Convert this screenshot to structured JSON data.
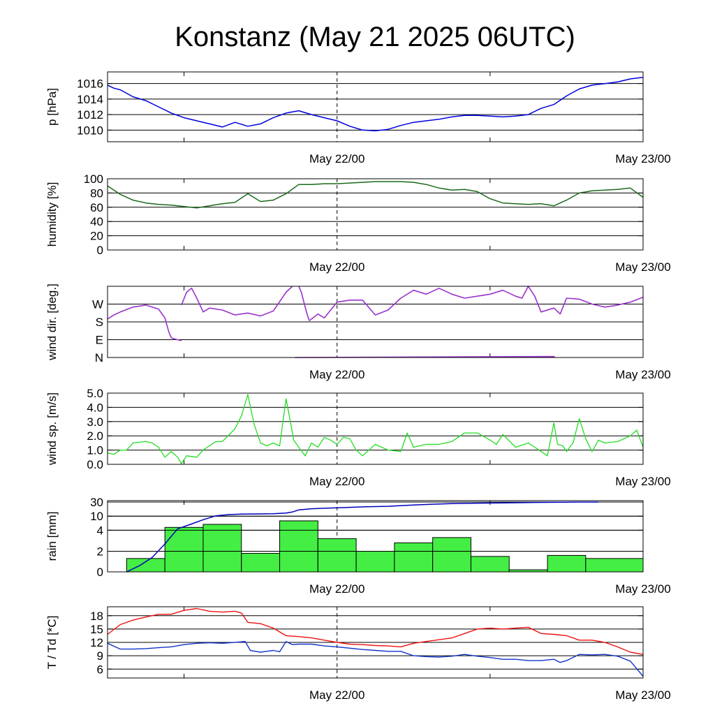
{
  "title": "Konstanz (May 21 2025 06UTC)",
  "x_tick_labels": [
    "May 22/00",
    "May 23/00"
  ],
  "colors": {
    "pressure": "#0000dd",
    "humidity": "#1a6a1a",
    "wind_dir": "#9933cc",
    "wind_speed": "#22dd22",
    "rain_bars": "#44ee44",
    "rain_cumulative": "#0000bb",
    "temperature": "#ee1111",
    "dewpoint": "#1133cc"
  },
  "chart_data": [
    {
      "type": "line",
      "name": "pressure",
      "ylabel": "p [hPa]",
      "ylim": [
        1008.5,
        1017.5
      ],
      "yticks": [
        1010,
        1012,
        1014,
        1016
      ],
      "ytick_labels": [
        "1010",
        "1012",
        "1014",
        "1016"
      ],
      "xlim": [
        0,
        42
      ],
      "x_unit": "hours since May 21 06UTC",
      "x": [
        0,
        0.5,
        1,
        2,
        3,
        4,
        5,
        6,
        7,
        8,
        9,
        10,
        11,
        12,
        13,
        14,
        15,
        16,
        17,
        18,
        19,
        20,
        21,
        22,
        23,
        24,
        25,
        26,
        27,
        28,
        29,
        30,
        31,
        32,
        33,
        34,
        35,
        36,
        37,
        38,
        39,
        40,
        41,
        42
      ],
      "y": [
        1015.8,
        1015.4,
        1015.2,
        1014.3,
        1013.8,
        1013.0,
        1012.2,
        1011.6,
        1011.2,
        1010.8,
        1010.4,
        1011.0,
        1010.5,
        1010.8,
        1011.6,
        1012.2,
        1012.5,
        1012.0,
        1011.6,
        1011.2,
        1010.5,
        1010.0,
        1009.9,
        1010.1,
        1010.6,
        1011.0,
        1011.2,
        1011.4,
        1011.7,
        1011.9,
        1011.9,
        1011.8,
        1011.7,
        1011.8,
        1012.0,
        1012.8,
        1013.3,
        1014.4,
        1015.3,
        1015.8,
        1016.0,
        1016.2,
        1016.6,
        1016.8
      ]
    },
    {
      "type": "line",
      "name": "humidity",
      "ylabel": "humidity [%]",
      "ylim": [
        0,
        100
      ],
      "yticks": [
        0,
        20,
        40,
        60,
        80,
        100
      ],
      "ytick_labels": [
        "0",
        "20",
        "40",
        "60",
        "80",
        "100"
      ],
      "xlim": [
        0,
        42
      ],
      "x": [
        0,
        1,
        2,
        3,
        4,
        5,
        6,
        7,
        8,
        9,
        10,
        11,
        12,
        13,
        14,
        15,
        16,
        17,
        18,
        19,
        20,
        21,
        22,
        23,
        24,
        25,
        26,
        27,
        28,
        29,
        30,
        31,
        32,
        33,
        34,
        35,
        36,
        37,
        38,
        39,
        40,
        41,
        42
      ],
      "y": [
        90,
        78,
        70,
        66,
        64,
        63,
        61,
        59,
        62,
        65,
        67,
        79,
        68,
        70,
        79,
        92,
        92,
        93,
        93,
        94,
        95,
        96,
        96,
        96,
        95,
        92,
        87,
        84,
        85,
        82,
        72,
        66,
        65,
        64,
        65,
        62,
        70,
        80,
        83,
        84,
        85,
        87,
        74
      ]
    },
    {
      "type": "scatter",
      "name": "wind direction",
      "ylabel": "wind dir. [deg.]",
      "ylim": [
        0,
        360
      ],
      "yticks": [
        0,
        90,
        180,
        270
      ],
      "ytick_labels": [
        "N",
        "E",
        "S",
        "W"
      ],
      "xlim": [
        0,
        42
      ],
      "segments": [
        {
          "x": [
            0,
            0.5,
            1,
            2,
            3,
            4,
            4.5,
            4.8,
            5,
            5.2,
            5.5,
            5.8
          ],
          "y": [
            195,
            215,
            230,
            255,
            265,
            245,
            200,
            130,
            100,
            95,
            90,
            85
          ]
        },
        {
          "x": [
            5.8,
            6.2,
            6.6,
            7,
            7.5,
            8,
            9,
            10,
            11,
            12,
            13,
            14,
            14.5
          ],
          "y": [
            265,
            330,
            350,
            300,
            230,
            250,
            240,
            215,
            225,
            210,
            235,
            330,
            360
          ]
        },
        {
          "x": [
            15,
            15.2,
            15.4,
            15.6,
            15.8
          ],
          "y": [
            360,
            330,
            280,
            230,
            190
          ]
        },
        {
          "x": [
            15.8,
            16.5,
            17,
            18,
            19,
            20,
            21,
            22,
            23,
            24,
            25,
            26,
            27,
            28,
            29,
            30,
            31,
            32,
            32.5,
            33,
            33.5,
            34,
            35,
            35.5,
            36,
            37,
            38,
            39,
            40,
            41,
            42
          ],
          "y": [
            185,
            220,
            200,
            280,
            290,
            290,
            215,
            240,
            300,
            340,
            320,
            350,
            320,
            300,
            310,
            320,
            340,
            310,
            300,
            360,
            310,
            230,
            250,
            220,
            300,
            295,
            270,
            255,
            265,
            280,
            305
          ]
        },
        {
          "x": [
            14.7,
            35.0,
            35.1
          ],
          "y": [
            0,
            5,
            0
          ]
        }
      ]
    },
    {
      "type": "line",
      "name": "wind speed",
      "ylabel": "wind sp. [m/s]",
      "ylim": [
        0,
        5
      ],
      "yticks": [
        0,
        1,
        2,
        3,
        4,
        5
      ],
      "ytick_labels": [
        "0.0",
        "1.0",
        "2.0",
        "3.0",
        "4.0",
        "5.0"
      ],
      "xlim": [
        0,
        42
      ],
      "x": [
        0,
        0.5,
        1,
        1.5,
        2,
        3,
        3.5,
        4,
        4.5,
        5,
        5.5,
        5.8,
        6.2,
        7,
        7.5,
        8,
        8.5,
        9,
        10,
        10.5,
        11,
        11.5,
        12,
        12.5,
        13,
        13.5,
        14,
        14.3,
        14.6,
        15,
        15.5,
        16,
        16.5,
        17,
        17.5,
        18,
        18.5,
        19,
        19.5,
        20,
        21,
        22,
        23,
        23.5,
        24,
        25,
        26,
        27,
        28,
        29,
        30,
        30.5,
        31,
        32,
        33,
        34,
        34.5,
        35,
        35.3,
        35.7,
        36,
        36.5,
        37,
        37.5,
        38,
        38.5,
        39,
        40,
        41,
        41.5,
        42
      ],
      "y": [
        0.8,
        0.7,
        1.0,
        1.0,
        1.5,
        1.6,
        1.5,
        1.2,
        0.5,
        0.9,
        0.5,
        0.05,
        0.6,
        0.5,
        1.0,
        1.3,
        1.6,
        1.6,
        2.5,
        3.4,
        4.9,
        2.8,
        1.5,
        1.3,
        1.5,
        1.3,
        4.6,
        3.2,
        1.7,
        1.2,
        0.6,
        1.5,
        1.2,
        1.9,
        1.7,
        1.4,
        1.9,
        1.8,
        1.0,
        0.6,
        1.4,
        1.0,
        0.9,
        2.2,
        1.2,
        1.4,
        1.4,
        1.6,
        2.2,
        2.2,
        1.7,
        1.4,
        2.1,
        1.2,
        1.5,
        0.9,
        0.6,
        2.9,
        1.4,
        1.3,
        0.9,
        1.5,
        3.2,
        1.8,
        0.9,
        1.7,
        1.5,
        1.6,
        2.0,
        2.4,
        1.2
      ]
    },
    {
      "type": "bar",
      "name": "rain",
      "ylabel": "rain [mm]",
      "y_scale": "nonlinear",
      "yticks": [
        0,
        2,
        4,
        10,
        30
      ],
      "ytick_labels": [
        "0",
        "2",
        "4",
        "10",
        "30"
      ],
      "xlim": [
        0,
        42
      ],
      "bars": [
        {
          "x0": 1.5,
          "x1": 4.5,
          "value": 1.3
        },
        {
          "x0": 4.5,
          "x1": 7.5,
          "value": 5.2
        },
        {
          "x0": 7.5,
          "x1": 10.5,
          "value": 6.5
        },
        {
          "x0": 10.5,
          "x1": 13.5,
          "value": 1.8
        },
        {
          "x0": 13.5,
          "x1": 16.5,
          "value": 8.0
        },
        {
          "x0": 16.5,
          "x1": 19.5,
          "value": 3.2
        },
        {
          "x0": 19.5,
          "x1": 22.5,
          "value": 2.0
        },
        {
          "x0": 22.5,
          "x1": 25.5,
          "value": 2.8
        },
        {
          "x0": 25.5,
          "x1": 28.5,
          "value": 3.3
        },
        {
          "x0": 28.5,
          "x1": 31.5,
          "value": 1.5
        },
        {
          "x0": 31.5,
          "x1": 34.5,
          "value": 0.2
        },
        {
          "x0": 34.5,
          "x1": 37.5,
          "value": 1.6
        },
        {
          "x0": 37.5,
          "x1": 42,
          "value": 1.3
        }
      ],
      "cumulative": {
        "x": [
          1.5,
          2.5,
          3.5,
          4.5,
          5.5,
          6.5,
          7.5,
          8.5,
          9.5,
          10.5,
          12,
          13,
          14,
          14.5,
          15,
          16,
          17,
          18,
          19,
          20,
          22,
          24,
          25.5,
          27,
          29,
          31,
          33,
          35,
          37,
          38.5
        ],
        "y": [
          0,
          0.6,
          1.4,
          2.7,
          4.6,
          6.5,
          8.5,
          10.5,
          12.2,
          13.0,
          13.2,
          13.5,
          14.5,
          16,
          18.8,
          20.5,
          21.2,
          21.8,
          22.5,
          23.2,
          24.0,
          25.8,
          27.0,
          27.8,
          28.5,
          28.9,
          29.3,
          29.6,
          30.0,
          30.1
        ]
      }
    },
    {
      "type": "line",
      "name": "temperature / dewpoint",
      "ylabel": "T / Td [*C]",
      "ylim": [
        4,
        20
      ],
      "yticks": [
        6,
        9,
        12,
        15,
        18
      ],
      "ytick_labels": [
        "6",
        "9",
        "12",
        "15",
        "18"
      ],
      "xlim": [
        0,
        42
      ],
      "series": [
        {
          "x": [
            0,
            1,
            2,
            3,
            4,
            5,
            6,
            7,
            8,
            9,
            10,
            10.5,
            11,
            12,
            13,
            14,
            15,
            16,
            17,
            18,
            19,
            20,
            21,
            22,
            23,
            24,
            25,
            26,
            27,
            28,
            29,
            30,
            31,
            32,
            33,
            34,
            35,
            36,
            37,
            38,
            39,
            40,
            41,
            42
          ],
          "y": [
            13.8,
            16.0,
            17.0,
            17.7,
            18.3,
            18.3,
            19.2,
            19.6,
            19.0,
            18.8,
            19.0,
            18.6,
            16.5,
            16.2,
            15.2,
            13.5,
            13.3,
            13.0,
            12.5,
            12.0,
            11.6,
            11.5,
            11.3,
            11.2,
            11.0,
            11.8,
            12.2,
            12.6,
            13.0,
            14.0,
            15.0,
            15.2,
            15.0,
            15.2,
            15.4,
            14.0,
            13.8,
            13.5,
            12.5,
            12.5,
            12.0,
            11.0,
            9.8,
            9.3
          ]
        },
        {
          "x": [
            0,
            1,
            2,
            3,
            4,
            5,
            6,
            7,
            8,
            9,
            10,
            10.8,
            11.2,
            11.6,
            12,
            13,
            13.5,
            14,
            14.5,
            15,
            16,
            17,
            18,
            19,
            20,
            21,
            22,
            23,
            24,
            25,
            26,
            27,
            28,
            29,
            30,
            31,
            32,
            33,
            34,
            35,
            35.5,
            36,
            37,
            38,
            39,
            40,
            41,
            42
          ],
          "y": [
            11.8,
            10.5,
            10.5,
            10.6,
            10.8,
            11.0,
            11.5,
            11.8,
            11.9,
            11.8,
            12.0,
            12.2,
            10.2,
            10.0,
            9.8,
            10.2,
            9.9,
            12.2,
            11.5,
            11.6,
            11.6,
            11.2,
            11.0,
            10.7,
            10.4,
            10.2,
            10.0,
            10.0,
            9.0,
            8.8,
            8.7,
            8.9,
            9.3,
            8.9,
            8.6,
            8.2,
            8.2,
            7.9,
            7.9,
            8.2,
            7.5,
            7.9,
            9.3,
            9.2,
            9.3,
            8.9,
            7.8,
            4.4
          ]
        }
      ]
    }
  ]
}
